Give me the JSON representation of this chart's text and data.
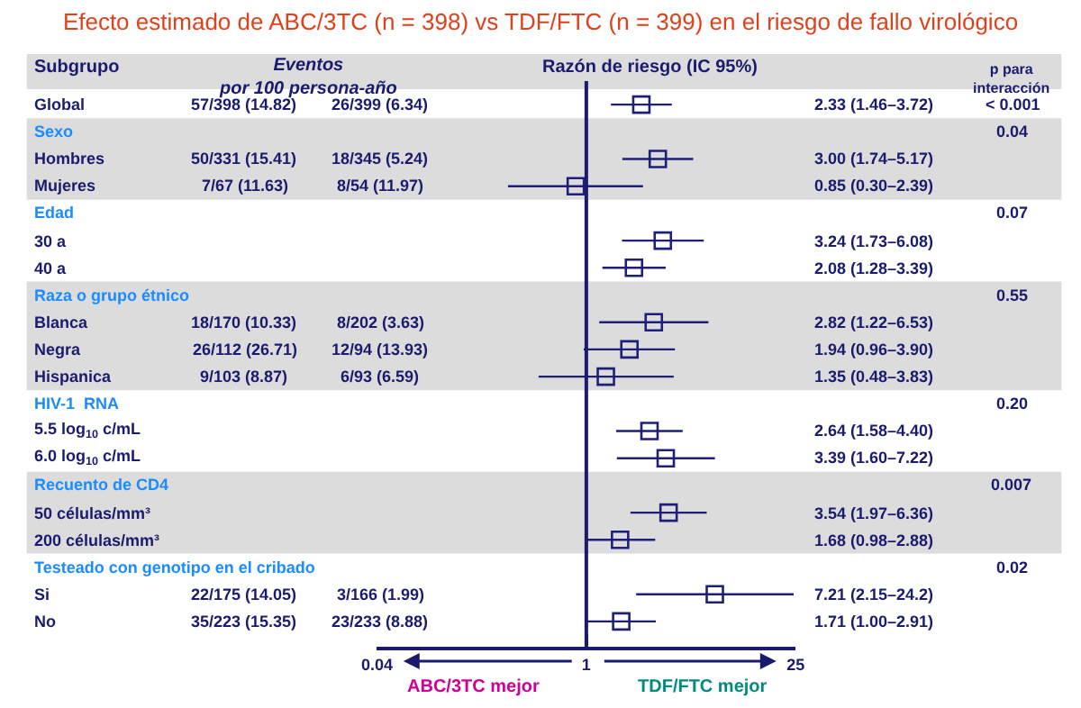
{
  "chart_data": {
    "type": "scatter",
    "title": "Efecto estimado de ABC/3TC (n = 398) vs TDF/FTC (n = 399) en el riesgo de fallo virológico",
    "xlabel": "Razón de riesgo (IC 95%)",
    "categories": [
      "Global",
      "Sexo",
      "Hombres",
      "Mujeres",
      "Edad",
      "30 a",
      "40 a",
      "Raza o grupo étnico",
      "Blanca",
      "Negra",
      "Hispanica",
      "HIV-1  RNA",
      "5.5 log$_{10}$ c/mL",
      "6.0 log$_{10}$ c/mL",
      "Recuento de CD4",
      "50 células/mm³",
      "200 células/mm³",
      "Testeado con genotipo en el cribado",
      "Si",
      "No"
    ],
    "series": [
      {
        "color": "#1f1f7a",
        "values": [
          2.33,
          null,
          3.0,
          0.85,
          null,
          3.24,
          2.08,
          null,
          2.82,
          1.94,
          1.35,
          null,
          2.64,
          3.39,
          null,
          3.54,
          1.68,
          null,
          7.21,
          1.71
        ],
        "errors": [
          [
            1.46,
            3.72
          ],
          null,
          [
            1.74,
            5.17
          ],
          [
            0.3,
            2.39
          ],
          null,
          [
            1.73,
            6.08
          ],
          [
            1.28,
            3.39
          ],
          null,
          [
            1.22,
            6.53
          ],
          [
            0.96,
            3.9
          ],
          [
            0.48,
            3.83
          ],
          null,
          [
            1.58,
            4.4
          ],
          [
            1.6,
            7.22
          ],
          null,
          [
            1.97,
            6.36
          ],
          [
            0.98,
            2.88
          ],
          null,
          [
            2.15,
            24.2
          ],
          [
            1.0,
            2.91
          ]
        ],
        "value_labels": [
          "2.33 (1.46–3.72)",
          null,
          "3.00 (1.74–5.17)",
          "0.85 (0.30–2.39)",
          null,
          "3.24 (1.73–6.08)",
          "2.08 (1.28–3.39)",
          null,
          "2.82 (1.22–6.53)",
          "1.94 (0.96–3.90)",
          "1.35 (0.48–3.83)",
          null,
          "2.64 (1.58–4.40)",
          "3.39 (1.60–7.22)",
          null,
          "3.54 (1.97–6.36)",
          "1.68 (0.98–2.88)",
          null,
          "7.21 (2.15–24.2)",
          "1.71 (1.00–2.91)"
        ]
      }
    ],
    "orientation": "horizontal",
    "log": "x",
    "xlim": [
      0.04,
      25
    ],
    "xticks": [
      0.04,
      1,
      25
    ],
    "marker": "square",
    "grid": false,
    "legend": false,
    "tick_labels": "x",
    "ref_lines": [
      {
        "axis": "x",
        "value": 1
      }
    ],
    "annotations": [
      "Subgrupo",
      "Eventos\npor 100 persona-año",
      "p para\ninteracción",
      "ABC/3TC mejor",
      "TDF/FTC mejor",
      "57/398 (14.82)",
      "26/399 (6.34)",
      "< 0.001",
      "0.04",
      "50/331 (15.41)",
      "18/345 (5.24)",
      "7/67 (11.63)",
      "8/54 (11.97)",
      "0.07",
      "0.55",
      "18/170 (10.33)",
      "8/202 (3.63)",
      "26/112 (26.71)",
      "12/94 (13.93)",
      "9/103 (8.87)",
      "6/93 (6.59)",
      "0.20",
      "0.007",
      "0.02",
      "22/175 (14.05)",
      "3/166 (1.99)",
      "35/223 (15.35)",
      "23/233 (8.88)"
    ]
  }
}
